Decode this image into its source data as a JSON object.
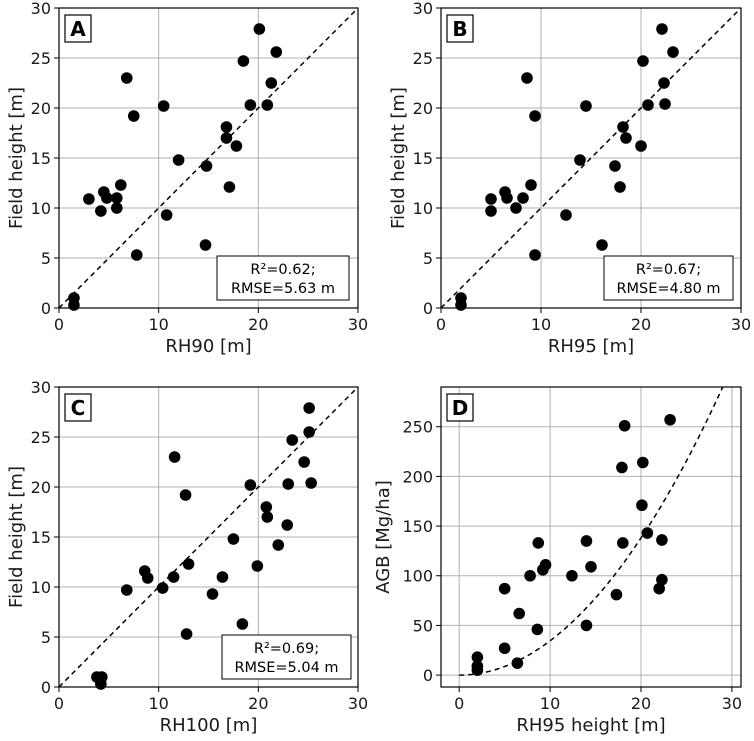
{
  "chart_data": [
    {
      "type": "scatter",
      "panel": "A",
      "xlabel": "RH90 [m]",
      "ylabel": "Field height [m]",
      "xlim": [
        0,
        30
      ],
      "ylim": [
        0,
        30
      ],
      "xticks": [
        0,
        10,
        20,
        30
      ],
      "yticks": [
        0,
        5,
        10,
        15,
        20,
        25,
        30
      ],
      "grid": true,
      "reference_line": "1:1",
      "annotation": [
        "R²=0.62;",
        "RMSE=5.63 m"
      ],
      "points": [
        [
          1.5,
          1.0
        ],
        [
          1.5,
          0.3
        ],
        [
          3.0,
          10.9
        ],
        [
          4.2,
          9.7
        ],
        [
          4.5,
          11.6
        ],
        [
          4.8,
          11.0
        ],
        [
          5.8,
          10.0
        ],
        [
          5.8,
          11.0
        ],
        [
          6.2,
          12.3
        ],
        [
          6.8,
          23.0
        ],
        [
          7.5,
          19.2
        ],
        [
          7.8,
          5.3
        ],
        [
          10.5,
          20.2
        ],
        [
          10.8,
          9.3
        ],
        [
          12.0,
          14.8
        ],
        [
          14.7,
          6.3
        ],
        [
          14.8,
          14.2
        ],
        [
          16.8,
          18.1
        ],
        [
          16.8,
          17.0
        ],
        [
          17.1,
          12.1
        ],
        [
          17.8,
          16.2
        ],
        [
          18.5,
          24.7
        ],
        [
          19.2,
          20.3
        ],
        [
          20.1,
          27.9
        ],
        [
          20.9,
          20.3
        ],
        [
          21.3,
          22.5
        ],
        [
          21.8,
          25.6
        ]
      ]
    },
    {
      "type": "scatter",
      "panel": "B",
      "xlabel": "RH95 [m]",
      "ylabel": "Field height [m]",
      "xlim": [
        0,
        30
      ],
      "ylim": [
        0,
        30
      ],
      "xticks": [
        0,
        10,
        20,
        30
      ],
      "yticks": [
        0,
        5,
        10,
        15,
        20,
        25,
        30
      ],
      "grid": true,
      "reference_line": "1:1",
      "annotation": [
        "R²=0.67;",
        "RMSE=4.80 m"
      ],
      "points": [
        [
          2.0,
          1.0
        ],
        [
          2.0,
          0.3
        ],
        [
          5.0,
          10.9
        ],
        [
          5.0,
          9.7
        ],
        [
          6.4,
          11.6
        ],
        [
          6.6,
          11.0
        ],
        [
          7.5,
          10.0
        ],
        [
          8.2,
          11.0
        ],
        [
          8.6,
          23.0
        ],
        [
          9.0,
          12.3
        ],
        [
          9.4,
          19.2
        ],
        [
          9.4,
          5.3
        ],
        [
          12.5,
          9.3
        ],
        [
          13.9,
          14.8
        ],
        [
          14.5,
          20.2
        ],
        [
          16.1,
          6.3
        ],
        [
          17.4,
          14.2
        ],
        [
          17.9,
          12.1
        ],
        [
          18.2,
          18.1
        ],
        [
          18.5,
          17.0
        ],
        [
          20.0,
          16.2
        ],
        [
          20.2,
          24.7
        ],
        [
          20.7,
          20.3
        ],
        [
          22.1,
          27.9
        ],
        [
          22.3,
          22.5
        ],
        [
          22.4,
          20.4
        ],
        [
          23.2,
          25.6
        ]
      ]
    },
    {
      "type": "scatter",
      "panel": "C",
      "xlabel": "RH100 [m]",
      "ylabel": "Field height [m]",
      "xlim": [
        0,
        30
      ],
      "ylim": [
        0,
        30
      ],
      "xticks": [
        0,
        10,
        20,
        30
      ],
      "yticks": [
        0,
        5,
        10,
        15,
        20,
        25,
        30
      ],
      "grid": true,
      "reference_line": "1:1",
      "annotation": [
        "R²=0.69;",
        "RMSE=5.04 m"
      ],
      "points": [
        [
          3.8,
          1.0
        ],
        [
          4.3,
          1.0
        ],
        [
          4.2,
          0.3
        ],
        [
          6.8,
          9.7
        ],
        [
          8.6,
          11.6
        ],
        [
          8.9,
          10.9
        ],
        [
          10.4,
          9.9
        ],
        [
          11.5,
          11.0
        ],
        [
          11.6,
          23.0
        ],
        [
          12.7,
          19.2
        ],
        [
          12.8,
          5.3
        ],
        [
          13.0,
          12.3
        ],
        [
          15.4,
          9.3
        ],
        [
          16.4,
          11.0
        ],
        [
          17.5,
          14.8
        ],
        [
          18.4,
          6.3
        ],
        [
          19.2,
          20.2
        ],
        [
          19.9,
          12.1
        ],
        [
          20.8,
          18.0
        ],
        [
          20.9,
          17.0
        ],
        [
          22.0,
          14.2
        ],
        [
          22.9,
          16.2
        ],
        [
          23.0,
          20.3
        ],
        [
          23.4,
          24.7
        ],
        [
          24.6,
          22.5
        ],
        [
          25.1,
          25.5
        ],
        [
          25.1,
          27.9
        ],
        [
          25.3,
          20.4
        ]
      ]
    },
    {
      "type": "scatter",
      "panel": "D",
      "xlabel": "RH95 height [m]",
      "ylabel": "AGB [Mg/ha]",
      "xlim": [
        -2,
        31
      ],
      "ylim": [
        -12,
        290
      ],
      "xticks": [
        0,
        10,
        20,
        30
      ],
      "yticks": [
        0,
        50,
        100,
        150,
        200,
        250
      ],
      "grid": true,
      "fit_curve": {
        "form": "y = a*x^2",
        "a": 0.345,
        "x_range": [
          0,
          29
        ]
      },
      "points": [
        [
          2.0,
          18
        ],
        [
          2.0,
          9
        ],
        [
          2.0,
          5
        ],
        [
          5.0,
          87
        ],
        [
          5.0,
          27
        ],
        [
          6.4,
          12
        ],
        [
          6.6,
          62
        ],
        [
          7.8,
          100
        ],
        [
          8.6,
          46
        ],
        [
          8.7,
          133
        ],
        [
          9.2,
          106
        ],
        [
          9.5,
          111
        ],
        [
          12.4,
          100
        ],
        [
          14.0,
          135
        ],
        [
          14.0,
          50
        ],
        [
          14.5,
          109
        ],
        [
          17.3,
          81
        ],
        [
          17.9,
          209
        ],
        [
          18.2,
          251
        ],
        [
          18.0,
          133
        ],
        [
          20.1,
          171
        ],
        [
          20.2,
          214
        ],
        [
          20.7,
          143
        ],
        [
          22.0,
          87
        ],
        [
          22.3,
          96
        ],
        [
          22.3,
          136
        ],
        [
          23.2,
          257
        ]
      ]
    }
  ]
}
